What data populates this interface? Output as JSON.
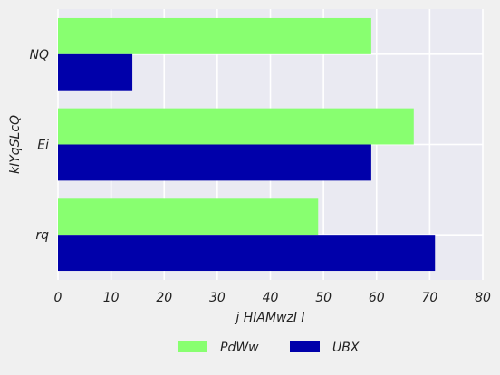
{
  "chart_data": {
    "type": "bar",
    "orientation": "horizontal",
    "title": "",
    "xlabel": "j HIAMwzI  I",
    "ylabel": "kIYqSLcQ",
    "categories": [
      "NQ",
      "Ei",
      "rq"
    ],
    "series": [
      {
        "name": "PdWw",
        "color": "#88ff70",
        "values": [
          59,
          67,
          49
        ]
      },
      {
        "name": "UBX",
        "color": "#0000aa",
        "values": [
          14,
          59,
          71
        ]
      }
    ],
    "xlim": [
      0,
      80
    ],
    "xticks": [
      0,
      10,
      20,
      30,
      40,
      50,
      60,
      70,
      80
    ],
    "grid": true,
    "legend_position": "bottom-center",
    "colors": {
      "plot_background": "#eaeaf2",
      "figure_background": "#f0f0f0",
      "grid": "#ffffff"
    }
  }
}
